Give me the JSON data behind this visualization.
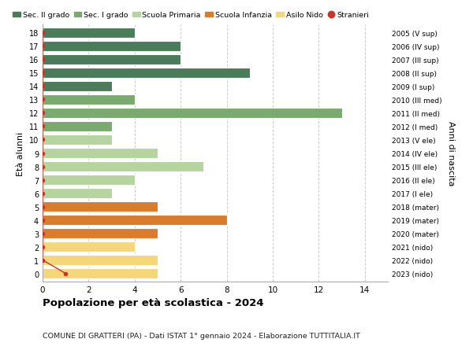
{
  "ages": [
    18,
    17,
    16,
    15,
    14,
    13,
    12,
    11,
    10,
    9,
    8,
    7,
    6,
    5,
    4,
    3,
    2,
    1,
    0
  ],
  "years": [
    "2005 (V sup)",
    "2006 (IV sup)",
    "2007 (III sup)",
    "2008 (II sup)",
    "2009 (I sup)",
    "2010 (III med)",
    "2011 (II med)",
    "2012 (I med)",
    "2013 (V ele)",
    "2014 (IV ele)",
    "2015 (III ele)",
    "2016 (II ele)",
    "2017 (I ele)",
    "2018 (mater)",
    "2019 (mater)",
    "2020 (mater)",
    "2021 (nido)",
    "2022 (nido)",
    "2023 (nido)"
  ],
  "values": [
    4,
    6,
    6,
    9,
    3,
    4,
    13,
    3,
    3,
    5,
    7,
    4,
    3,
    5,
    8,
    5,
    4,
    5,
    5
  ],
  "stranieri_vals": [
    0,
    0,
    0,
    0,
    0,
    0,
    0,
    0,
    0,
    0,
    0,
    0,
    0,
    0,
    0,
    0,
    0,
    0,
    1
  ],
  "bar_colors": [
    "#4a7c59",
    "#4a7c59",
    "#4a7c59",
    "#4a7c59",
    "#4a7c59",
    "#7aab6e",
    "#7aab6e",
    "#7aab6e",
    "#b5d4a0",
    "#b5d4a0",
    "#b5d4a0",
    "#b5d4a0",
    "#b5d4a0",
    "#d97c2b",
    "#d97c2b",
    "#d97c2b",
    "#f5d77a",
    "#f5d77a",
    "#f5d77a"
  ],
  "legend_labels": [
    "Sec. II grado",
    "Sec. I grado",
    "Scuola Primaria",
    "Scuola Infanzia",
    "Asilo Nido",
    "Stranieri"
  ],
  "legend_colors": [
    "#4a7c59",
    "#7aab6e",
    "#b5d4a0",
    "#d97c2b",
    "#f5d77a",
    "#c0392b"
  ],
  "title": "Popolazione per età scolastica - 2024",
  "subtitle": "COMUNE DI GRATTERI (PA) - Dati ISTAT 1° gennaio 2024 - Elaborazione TUTTITALIA.IT",
  "ylabel": "Età alunni",
  "ylabel2": "Anni di nascita",
  "xlabel_vals": [
    0,
    2,
    4,
    6,
    8,
    10,
    12,
    14
  ],
  "xlim": [
    0,
    15
  ],
  "bar_height": 0.8,
  "bg_color": "#ffffff",
  "grid_color": "#cccccc",
  "stranieri_dot_color": "#c0392b",
  "stranieri_line_color": "#c0392b"
}
